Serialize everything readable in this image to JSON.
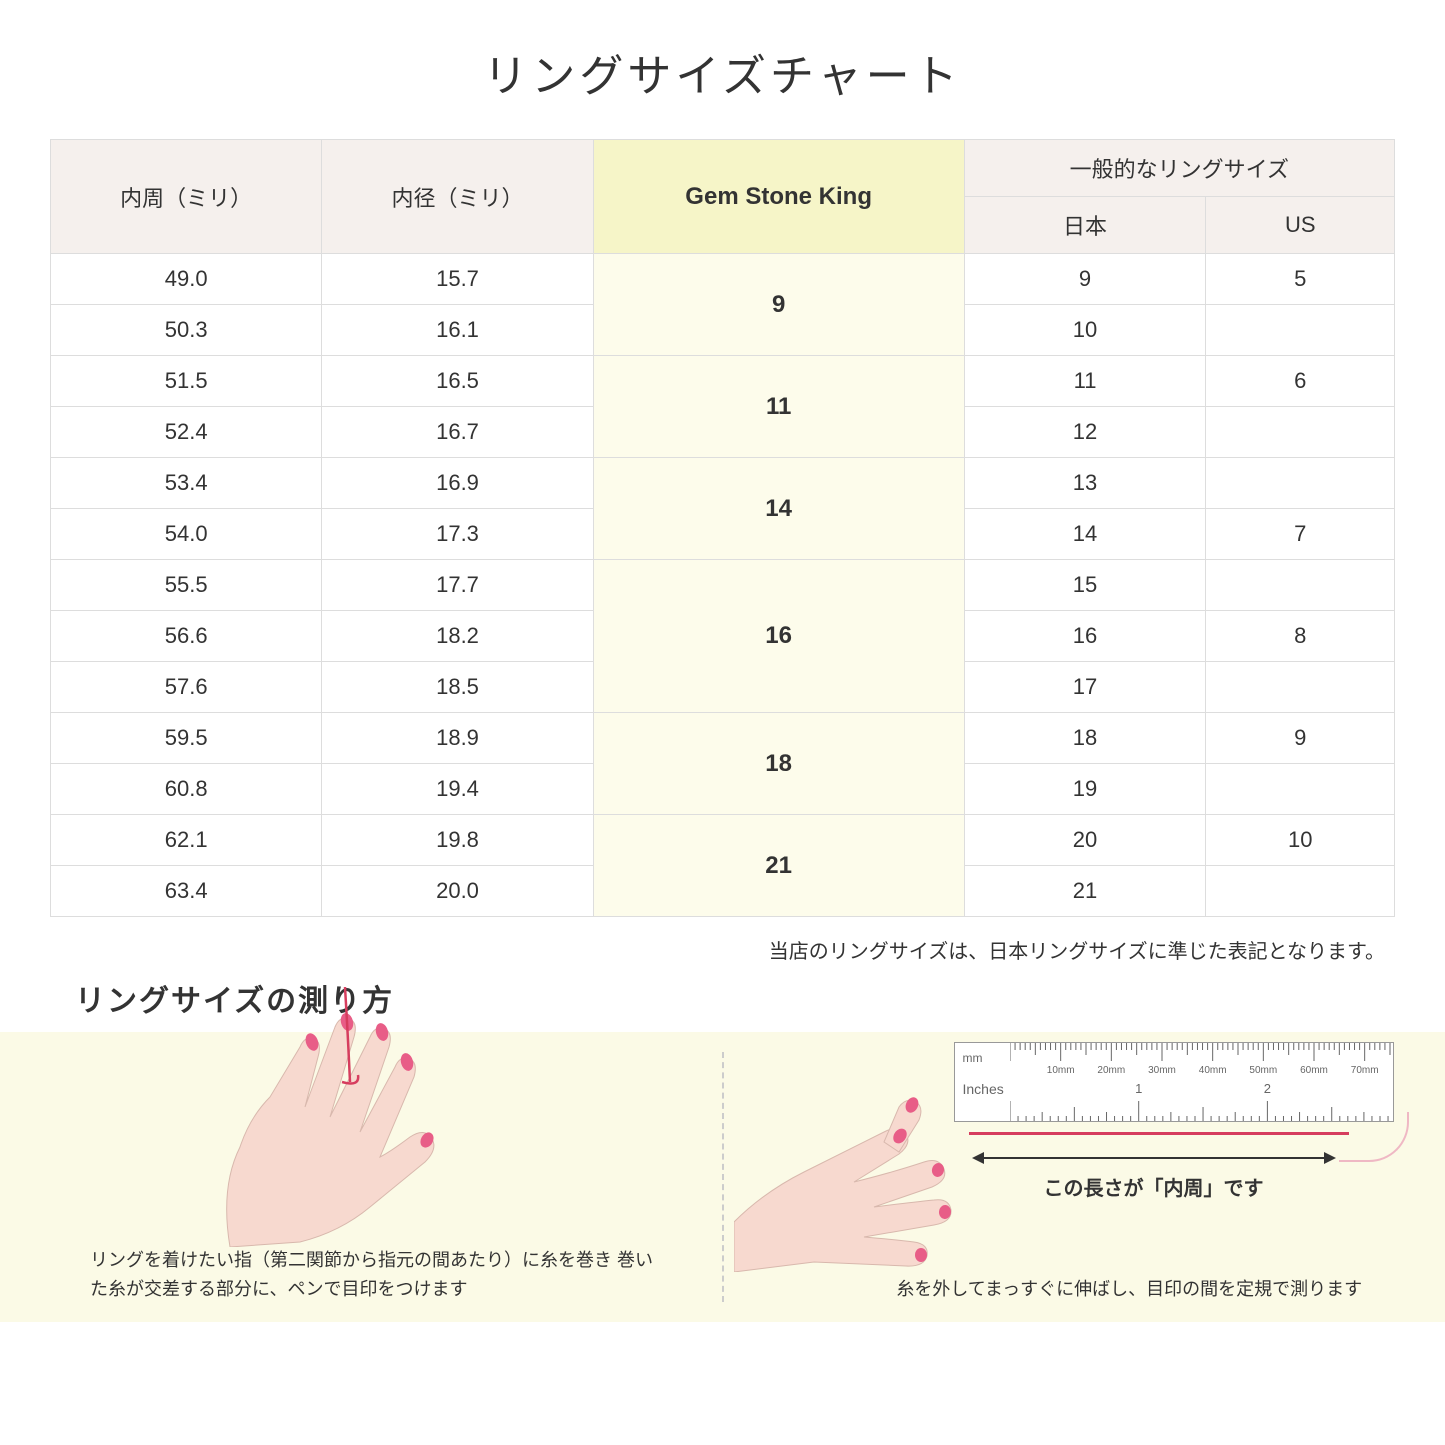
{
  "title": "リングサイズチャート",
  "table": {
    "headers": {
      "col1": "内周（ミリ）",
      "col2": "内径（ミリ）",
      "col3": "Gem Stone King",
      "col4_group": "一般的なリングサイズ",
      "col4a": "日本",
      "col4b": "US"
    },
    "groups": [
      {
        "gsk": "9",
        "rows": [
          {
            "c": "49.0",
            "d": "15.7",
            "jp": "9",
            "us": "5"
          },
          {
            "c": "50.3",
            "d": "16.1",
            "jp": "10",
            "us": ""
          }
        ]
      },
      {
        "gsk": "11",
        "rows": [
          {
            "c": "51.5",
            "d": "16.5",
            "jp": "11",
            "us": "6"
          },
          {
            "c": "52.4",
            "d": "16.7",
            "jp": "12",
            "us": ""
          }
        ]
      },
      {
        "gsk": "14",
        "rows": [
          {
            "c": "53.4",
            "d": "16.9",
            "jp": "13",
            "us": ""
          },
          {
            "c": "54.0",
            "d": "17.3",
            "jp": "14",
            "us": "7"
          }
        ]
      },
      {
        "gsk": "16",
        "rows": [
          {
            "c": "55.5",
            "d": "17.7",
            "jp": "15",
            "us": ""
          },
          {
            "c": "56.6",
            "d": "18.2",
            "jp": "16",
            "us": "8"
          },
          {
            "c": "57.6",
            "d": "18.5",
            "jp": "17",
            "us": ""
          }
        ]
      },
      {
        "gsk": "18",
        "rows": [
          {
            "c": "59.5",
            "d": "18.9",
            "jp": "18",
            "us": "9"
          },
          {
            "c": "60.8",
            "d": "19.4",
            "jp": "19",
            "us": ""
          }
        ]
      },
      {
        "gsk": "21",
        "rows": [
          {
            "c": "62.1",
            "d": "19.8",
            "jp": "20",
            "us": "10"
          },
          {
            "c": "63.4",
            "d": "20.0",
            "jp": "21",
            "us": ""
          }
        ]
      }
    ]
  },
  "note": "当店のリングサイズは、日本リングサイズに準じた表記となります。",
  "measure_title": "リングサイズの測り方",
  "infographic": {
    "left_caption": "リングを着けたい指（第二関節から指元の間あたり）に糸を巻き\n巻いた糸が交差する部分に、ペンで目印をつけます",
    "right_caption": "糸を外してまっすぐに伸ばし、目印の間を定規で測ります",
    "arrow_label": "この長さが「内周」です",
    "ruler": {
      "mm_label": "mm",
      "inches_label": "Inches",
      "mm_ticks": [
        "10mm",
        "20mm",
        "30mm",
        "40mm",
        "50mm",
        "60mm",
        "70mm"
      ],
      "inch_ticks": [
        "1",
        "2"
      ]
    },
    "colors": {
      "panel_bg": "#fbfae6",
      "skin": "#f7d9cf",
      "nail": "#e85d87",
      "thread": "#d63d5e",
      "thread_light": "#efb8c4"
    }
  }
}
